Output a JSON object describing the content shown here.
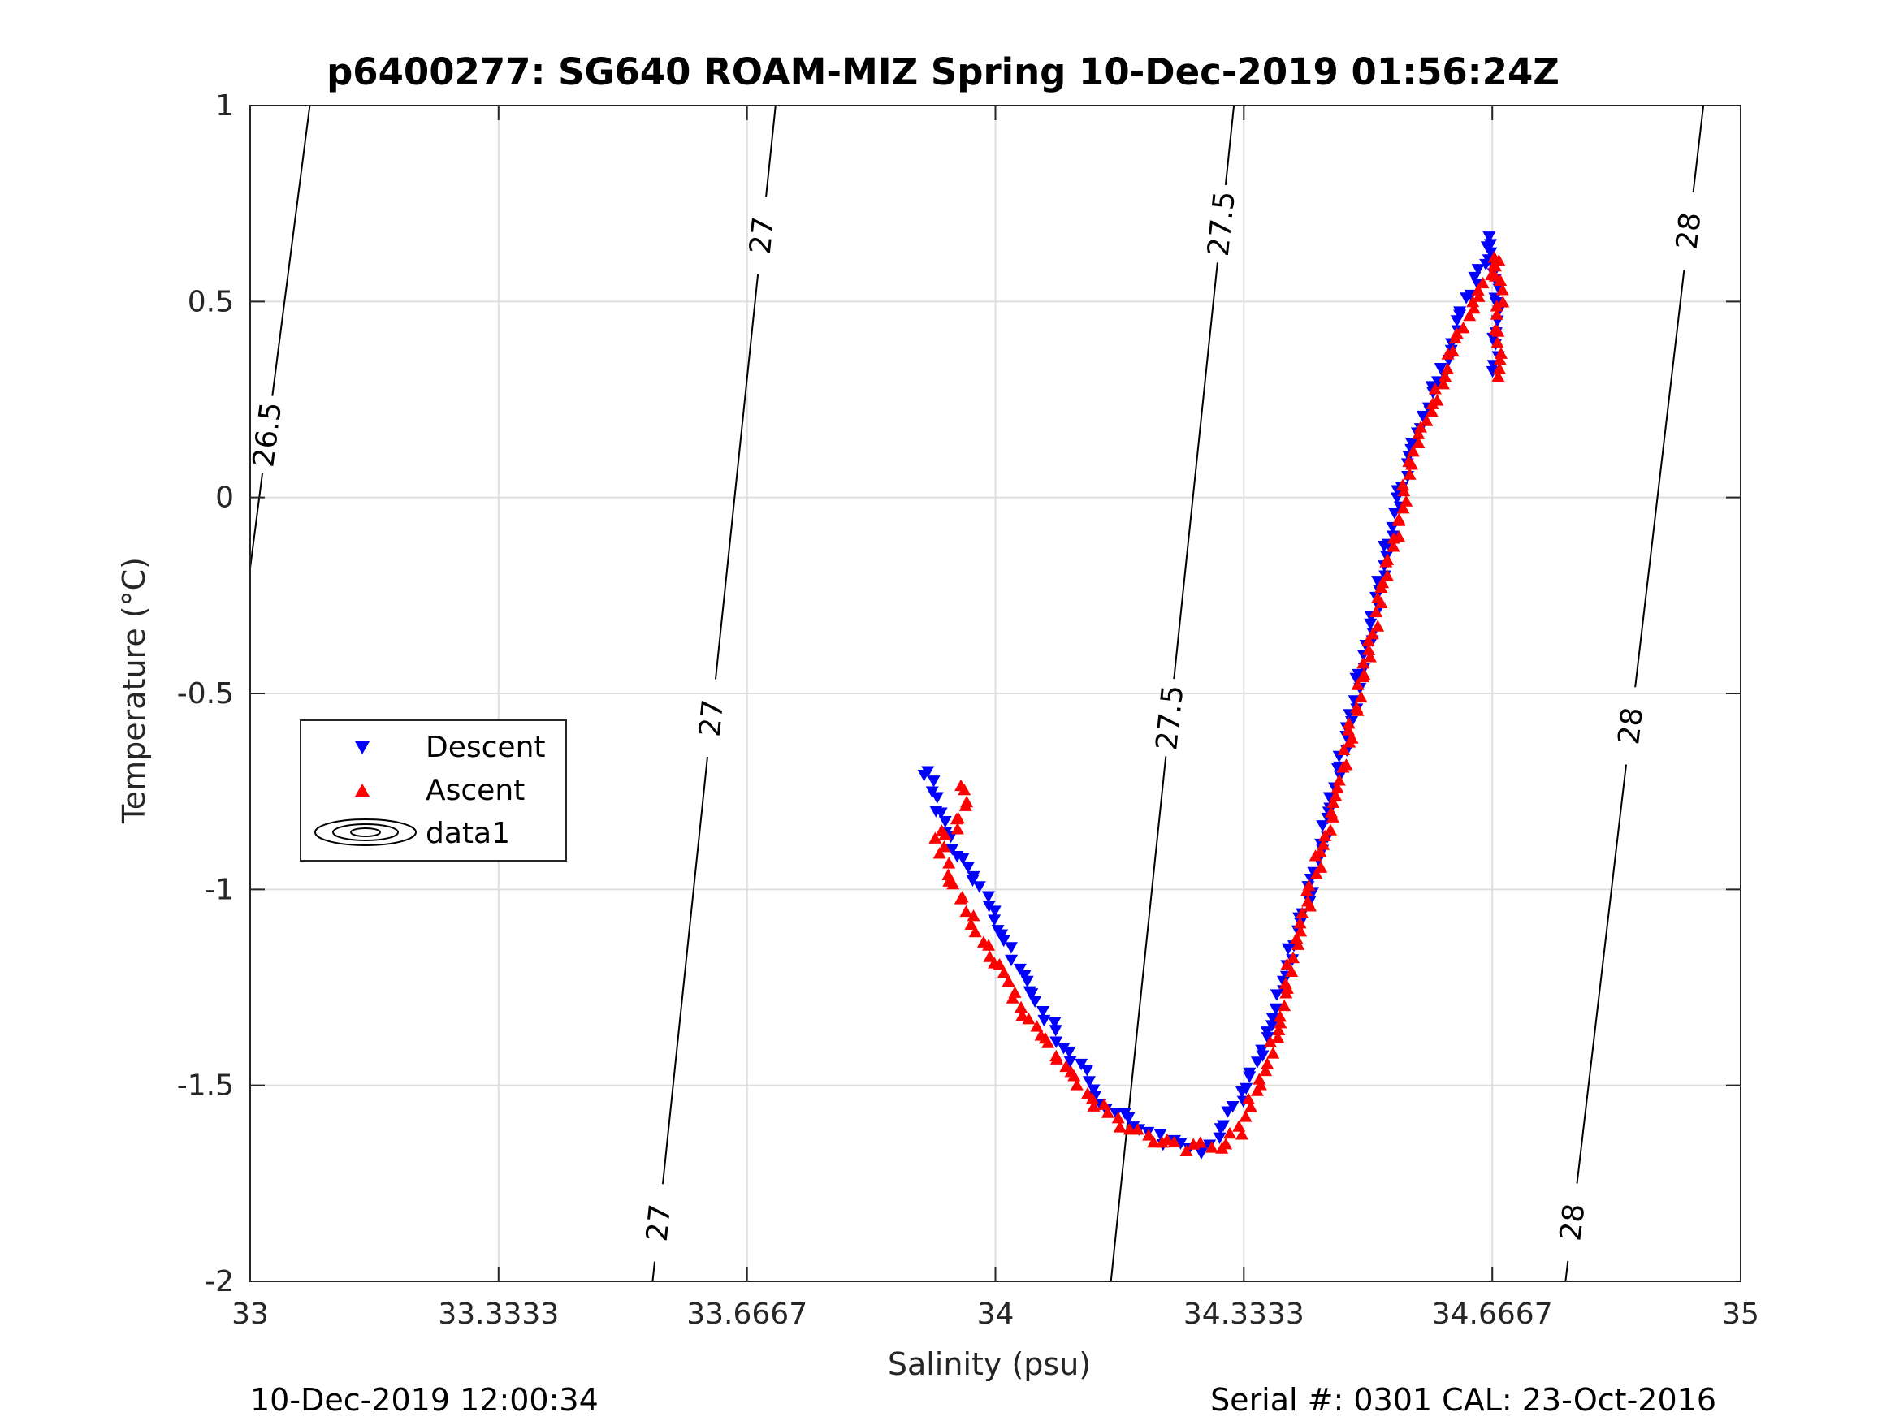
{
  "chart_data": {
    "type": "scatter",
    "title": "p6400277: SG640 ROAM-MIZ Spring 10-Dec-2019 01:56:24Z",
    "xlabel": "Salinity (psu)",
    "ylabel": "Temperature (°C)",
    "xlim": [
      33,
      35
    ],
    "ylim": [
      -2,
      1
    ],
    "x_ticks": [
      33,
      33.3333,
      33.6667,
      34,
      34.3333,
      34.6667,
      35
    ],
    "x_tick_labels": [
      "33",
      "33.3333",
      "33.6667",
      "34",
      "34.3333",
      "34.6667",
      "35"
    ],
    "y_ticks": [
      1,
      0.5,
      0,
      -0.5,
      -1,
      -1.5,
      -2
    ],
    "y_tick_labels": [
      "1",
      "0.5",
      "0",
      "-0.5",
      "-1",
      "-1.5",
      "-2"
    ],
    "grid": true,
    "legend_position": "left",
    "legend": [
      "Descent",
      "Ascent",
      "data1"
    ],
    "density_contours": [
      {
        "label": "26.5",
        "points": [
          [
            33.0,
            -0.18
          ],
          [
            33.08,
            1.0
          ]
        ]
      },
      {
        "label": "27",
        "points": [
          [
            33.54,
            -2.0
          ],
          [
            33.705,
            1.0
          ]
        ]
      },
      {
        "label": "27.5",
        "points": [
          [
            34.155,
            -2.0
          ],
          [
            34.32,
            1.0
          ]
        ]
      },
      {
        "label": "28",
        "points": [
          [
            34.765,
            -2.0
          ],
          [
            34.95,
            1.0
          ]
        ]
      }
    ],
    "contour_label_positions": [
      {
        "label": "26.5",
        "x": 33.025,
        "y": 0.16
      },
      {
        "label": "27",
        "x": 33.68,
        "y": 0.67
      },
      {
        "label": "27",
        "x": 33.605,
        "y": -0.56
      },
      {
        "label": "27",
        "x": 33.545,
        "y": -1.85
      },
      {
        "label": "27.5",
        "x": 34.295,
        "y": 0.7
      },
      {
        "label": "27.5",
        "x": 34.225,
        "y": -0.56
      },
      {
        "label": "28",
        "x": 34.93,
        "y": 0.68
      },
      {
        "label": "28",
        "x": 34.84,
        "y": -0.58
      },
      {
        "label": "28",
        "x": 34.778,
        "y": -1.85
      }
    ],
    "series": [
      {
        "name": "Descent",
        "color": "#0000ff",
        "marker": "triangle-down",
        "path": [
          [
            33.905,
            -0.69
          ],
          [
            33.93,
            -0.82
          ],
          [
            33.955,
            -0.92
          ],
          [
            33.985,
            -1.02
          ],
          [
            34.02,
            -1.16
          ],
          [
            34.06,
            -1.3
          ],
          [
            34.1,
            -1.42
          ],
          [
            34.14,
            -1.53
          ],
          [
            34.19,
            -1.61
          ],
          [
            34.24,
            -1.65
          ],
          [
            34.27,
            -1.67
          ],
          [
            34.3,
            -1.63
          ],
          [
            34.325,
            -1.55
          ],
          [
            34.355,
            -1.42
          ],
          [
            34.38,
            -1.27
          ],
          [
            34.41,
            -1.08
          ],
          [
            34.44,
            -0.88
          ],
          [
            34.47,
            -0.62
          ],
          [
            34.5,
            -0.38
          ],
          [
            34.53,
            -0.1
          ],
          [
            34.56,
            0.13
          ],
          [
            34.595,
            0.3
          ],
          [
            34.625,
            0.48
          ],
          [
            34.66,
            0.6
          ],
          [
            34.668,
            0.66
          ],
          [
            34.672,
            0.55
          ],
          [
            34.673,
            0.45
          ],
          [
            34.672,
            0.32
          ]
        ],
        "count": 190
      },
      {
        "name": "Ascent",
        "color": "#ff0000",
        "marker": "triangle-up",
        "path": [
          [
            33.95,
            -0.73
          ],
          [
            33.96,
            -0.79
          ],
          [
            33.945,
            -0.85
          ],
          [
            33.92,
            -0.86
          ],
          [
            33.935,
            -0.94
          ],
          [
            33.955,
            -1.03
          ],
          [
            33.99,
            -1.15
          ],
          [
            34.03,
            -1.29
          ],
          [
            34.075,
            -1.41
          ],
          [
            34.12,
            -1.52
          ],
          [
            34.17,
            -1.6
          ],
          [
            34.21,
            -1.64
          ],
          [
            34.26,
            -1.66
          ],
          [
            34.305,
            -1.65
          ],
          [
            34.33,
            -1.61
          ],
          [
            34.345,
            -1.53
          ],
          [
            34.37,
            -1.42
          ],
          [
            34.385,
            -1.27
          ],
          [
            34.41,
            -1.1
          ],
          [
            34.44,
            -0.88
          ],
          [
            34.47,
            -0.65
          ],
          [
            34.5,
            -0.4
          ],
          [
            34.53,
            -0.14
          ],
          [
            34.56,
            0.1
          ],
          [
            34.6,
            0.3
          ],
          [
            34.63,
            0.45
          ],
          [
            34.665,
            0.58
          ],
          [
            34.673,
            0.62
          ],
          [
            34.676,
            0.5
          ],
          [
            34.675,
            0.4
          ],
          [
            34.673,
            0.31
          ]
        ],
        "count": 190
      }
    ]
  },
  "footer": {
    "left": "10-Dec-2019 12:00:34",
    "right": "Serial #: 0301  CAL: 23-Oct-2016"
  }
}
